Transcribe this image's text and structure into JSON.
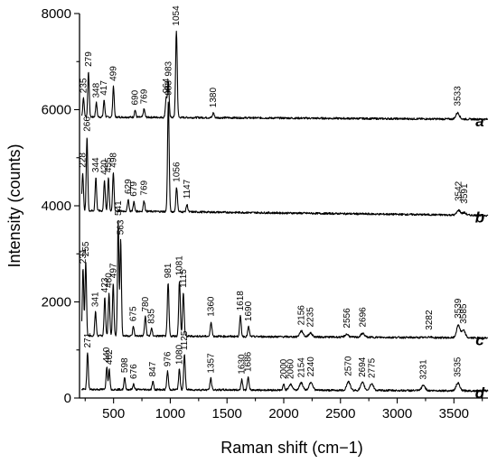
{
  "chart_data": {
    "type": "line",
    "xlabel": "Raman shift (cm−1)",
    "ylabel": "Intensity (counts)",
    "xlim": [
      200,
      3800
    ],
    "ylim": [
      0,
      8000
    ],
    "xticks": [
      500,
      1000,
      1500,
      2000,
      2500,
      3000,
      3500
    ],
    "yticks": [
      0,
      2000,
      4000,
      6000,
      8000
    ],
    "xtick_labels": [
      "500",
      "1000",
      "1500",
      "2000",
      "2500",
      "3000",
      "3500"
    ],
    "ytick_labels": [
      "0",
      "2000",
      "4000",
      "6000",
      "8000"
    ],
    "series": [
      {
        "name": "a",
        "baseline": 5850,
        "baseline_end": 5800,
        "peaks": [
          {
            "label": "235",
            "x": 235,
            "y": 6250
          },
          {
            "label": "279",
            "x": 279,
            "y": 6800
          },
          {
            "label": "348",
            "x": 348,
            "y": 6150
          },
          {
            "label": "417",
            "x": 417,
            "y": 6200
          },
          {
            "label": "499",
            "x": 499,
            "y": 6500
          },
          {
            "label": "690",
            "x": 690,
            "y": 6000
          },
          {
            "label": "769",
            "x": 769,
            "y": 6020
          },
          {
            "label": "964",
            "x": 964,
            "y": 6250
          },
          {
            "label": "983",
            "x": 983,
            "y": 6600
          },
          {
            "label": "1054",
            "x": 1054,
            "y": 7650
          },
          {
            "label": "1380",
            "x": 1380,
            "y": 5950
          },
          {
            "label": "3533",
            "x": 3533,
            "y": 5980
          }
        ]
      },
      {
        "name": "b",
        "baseline": 3900,
        "baseline_end": 3800,
        "peaks": [
          {
            "label": "228",
            "x": 228,
            "y": 4700
          },
          {
            "label": "266",
            "x": 266,
            "y": 5450
          },
          {
            "label": "344",
            "x": 344,
            "y": 4600
          },
          {
            "label": "420",
            "x": 420,
            "y": 4550
          },
          {
            "label": "455",
            "x": 455,
            "y": 4600
          },
          {
            "label": "498",
            "x": 498,
            "y": 4700
          },
          {
            "label": "629",
            "x": 629,
            "y": 4150
          },
          {
            "label": "679",
            "x": 679,
            "y": 4100
          },
          {
            "label": "769",
            "x": 769,
            "y": 4120
          },
          {
            "label": "983",
            "x": 983,
            "y": 6200
          },
          {
            "label": "1056",
            "x": 1056,
            "y": 4400
          },
          {
            "label": "1147",
            "x": 1147,
            "y": 4050
          },
          {
            "label": "3542",
            "x": 3542,
            "y": 4000
          },
          {
            "label": "3591",
            "x": 3591,
            "y": 3950
          }
        ]
      },
      {
        "name": "c",
        "baseline": 1300,
        "baseline_end": 1250,
        "peaks": [
          {
            "label": "231",
            "x": 231,
            "y": 2700
          },
          {
            "label": "255",
            "x": 255,
            "y": 2850
          },
          {
            "label": "341",
            "x": 341,
            "y": 1800
          },
          {
            "label": "423",
            "x": 423,
            "y": 2100
          },
          {
            "label": "460",
            "x": 460,
            "y": 2200
          },
          {
            "label": "497",
            "x": 497,
            "y": 2400
          },
          {
            "label": "541",
            "x": 541,
            "y": 3700
          },
          {
            "label": "563",
            "x": 563,
            "y": 3300
          },
          {
            "label": "675",
            "x": 675,
            "y": 1500
          },
          {
            "label": "780",
            "x": 780,
            "y": 1700
          },
          {
            "label": "835",
            "x": 835,
            "y": 1450
          },
          {
            "label": "981",
            "x": 981,
            "y": 2400
          },
          {
            "label": "1081",
            "x": 1081,
            "y": 2450
          },
          {
            "label": "1115",
            "x": 1115,
            "y": 2200
          },
          {
            "label": "1360",
            "x": 1360,
            "y": 1600
          },
          {
            "label": "1618",
            "x": 1618,
            "y": 1720
          },
          {
            "label": "1690",
            "x": 1690,
            "y": 1500
          },
          {
            "label": "2156",
            "x": 2156,
            "y": 1420
          },
          {
            "label": "2235",
            "x": 2235,
            "y": 1380
          },
          {
            "label": "2556",
            "x": 2556,
            "y": 1360
          },
          {
            "label": "2696",
            "x": 2696,
            "y": 1380
          },
          {
            "label": "3282",
            "x": 3282,
            "y": 1320
          },
          {
            "label": "3539",
            "x": 3539,
            "y": 1560
          },
          {
            "label": "3585",
            "x": 3585,
            "y": 1450
          }
        ]
      },
      {
        "name": "d",
        "baseline": 180,
        "baseline_end": 150,
        "peaks": [
          {
            "label": "271",
            "x": 271,
            "y": 950
          },
          {
            "label": "440",
            "x": 440,
            "y": 650
          },
          {
            "label": "462",
            "x": 462,
            "y": 600
          },
          {
            "label": "598",
            "x": 598,
            "y": 430
          },
          {
            "label": "676",
            "x": 676,
            "y": 300
          },
          {
            "label": "847",
            "x": 847,
            "y": 350
          },
          {
            "label": "976",
            "x": 976,
            "y": 560
          },
          {
            "label": "1080",
            "x": 1080,
            "y": 600
          },
          {
            "label": "1125",
            "x": 1125,
            "y": 900
          },
          {
            "label": "1357",
            "x": 1357,
            "y": 420
          },
          {
            "label": "1630",
            "x": 1630,
            "y": 400
          },
          {
            "label": "1686",
            "x": 1686,
            "y": 450
          },
          {
            "label": "2000",
            "x": 2000,
            "y": 300
          },
          {
            "label": "2060",
            "x": 2060,
            "y": 300
          },
          {
            "label": "2154",
            "x": 2154,
            "y": 330
          },
          {
            "label": "2240",
            "x": 2240,
            "y": 350
          },
          {
            "label": "2570",
            "x": 2570,
            "y": 360
          },
          {
            "label": "2694",
            "x": 2694,
            "y": 340
          },
          {
            "label": "2775",
            "x": 2775,
            "y": 320
          },
          {
            "label": "3231",
            "x": 3231,
            "y": 290
          },
          {
            "label": "3535",
            "x": 3535,
            "y": 340
          }
        ]
      }
    ]
  }
}
